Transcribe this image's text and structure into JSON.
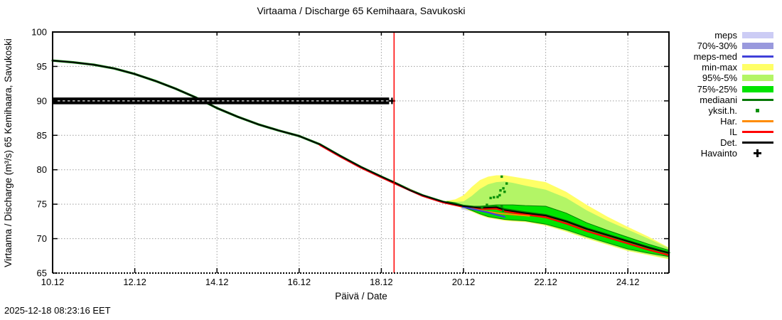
{
  "title": "Virtaama / Discharge  65 Kemihaara, Savukoski",
  "timestamp": "2025-12-18 08:23:16 EET",
  "legend": {
    "items": [
      {
        "label": "meps",
        "type": "band",
        "color": "#ccccf5"
      },
      {
        "label": "70%-30%",
        "type": "band",
        "color": "#9999dd"
      },
      {
        "label": "meps-med",
        "type": "line",
        "color": "#4040d9"
      },
      {
        "label": "min-max",
        "type": "band",
        "color": "#ffff66"
      },
      {
        "label": "95%-5%",
        "type": "band",
        "color": "#b3f566"
      },
      {
        "label": "75%-25%",
        "type": "band",
        "color": "#00e400"
      },
      {
        "label": "mediaani",
        "type": "line",
        "color": "#067806"
      },
      {
        "label": "yksit.h.",
        "type": "point",
        "color": "#089008"
      },
      {
        "label": "Har.",
        "type": "line",
        "color": "#ff8c00"
      },
      {
        "label": "IL",
        "type": "line",
        "color": "#ff0000"
      },
      {
        "label": "Det.",
        "type": "line",
        "color": "#000000"
      },
      {
        "label": "Havainto",
        "type": "plus",
        "color": "#000000"
      }
    ]
  },
  "chart_data": {
    "type": "line",
    "title": "Virtaama / Discharge  65 Kemihaara, Savukoski",
    "xlabel": "Päivä / Date",
    "ylabel": "Virtaama / Discharge (m³/s)  65 Kemihaara, Savukoski",
    "x_range_days": [
      10,
      25
    ],
    "x_ticks": [
      {
        "day": 10,
        "label": "10.12"
      },
      {
        "day": 12,
        "label": "12.12"
      },
      {
        "day": 14,
        "label": "14.12"
      },
      {
        "day": 16,
        "label": "16.12"
      },
      {
        "day": 18,
        "label": "18.12"
      },
      {
        "day": 20,
        "label": "20.12"
      },
      {
        "day": 22,
        "label": "22.12"
      },
      {
        "day": 24,
        "label": "24.12"
      }
    ],
    "y_range": [
      65,
      100
    ],
    "y_ticks": [
      65,
      70,
      75,
      80,
      85,
      90,
      95,
      100
    ],
    "grid": "dotted",
    "grid_color": "#9e9e9e",
    "now_line": {
      "day": 18.31,
      "color": "#ff0000"
    },
    "observation": {
      "label": "Havainto",
      "value": 90.0,
      "day_start": 10.0,
      "day_end": 18.19,
      "marker": "plus",
      "color": "#000000"
    },
    "bands": [
      {
        "name": "meps",
        "color": "#ccccf5",
        "points": [
          [
            19.95,
            74.25,
            74.95
          ],
          [
            20.3,
            73.8,
            74.5
          ],
          [
            20.6,
            73.4,
            74.15
          ],
          [
            21.0,
            72.75,
            73.55
          ]
        ]
      },
      {
        "name": "meps-70-30",
        "color": "#9999dd",
        "points": [
          [
            19.95,
            74.45,
            74.8
          ],
          [
            20.3,
            74.0,
            74.35
          ],
          [
            20.6,
            73.6,
            73.95
          ],
          [
            21.0,
            72.95,
            73.3
          ]
        ]
      },
      {
        "name": "min-max",
        "color": "#ffff66",
        "points": [
          [
            19.55,
            75.2,
            75.45
          ],
          [
            19.8,
            74.8,
            75.7
          ],
          [
            20.0,
            74.4,
            76.3
          ],
          [
            20.2,
            73.9,
            77.5
          ],
          [
            20.4,
            73.4,
            78.5
          ],
          [
            20.6,
            73.0,
            79.0
          ],
          [
            20.8,
            72.8,
            79.2
          ],
          [
            21.0,
            72.6,
            79.2
          ],
          [
            21.2,
            72.5,
            79.0
          ],
          [
            21.5,
            72.4,
            78.7
          ],
          [
            22.0,
            71.9,
            78.2
          ],
          [
            22.5,
            71.0,
            76.8
          ],
          [
            23.0,
            70.0,
            74.9
          ],
          [
            23.5,
            69.1,
            73.2
          ],
          [
            24.0,
            68.2,
            71.7
          ],
          [
            24.5,
            67.6,
            70.3
          ],
          [
            25.0,
            67.0,
            68.7
          ]
        ]
      },
      {
        "name": "95-5",
        "color": "#b3f566",
        "points": [
          [
            19.58,
            75.25,
            75.4
          ],
          [
            19.8,
            74.9,
            75.35
          ],
          [
            20.0,
            74.5,
            75.4
          ],
          [
            20.2,
            74.0,
            76.2
          ],
          [
            20.4,
            73.5,
            77.2
          ],
          [
            20.6,
            73.1,
            77.9
          ],
          [
            20.8,
            72.9,
            78.2
          ],
          [
            21.0,
            72.7,
            78.3
          ],
          [
            21.2,
            72.6,
            78.1
          ],
          [
            21.5,
            72.5,
            77.7
          ],
          [
            22.0,
            72.0,
            77.1
          ],
          [
            22.5,
            71.1,
            75.9
          ],
          [
            23.0,
            70.1,
            74.1
          ],
          [
            23.5,
            69.2,
            72.6
          ],
          [
            24.0,
            68.3,
            71.3
          ],
          [
            24.5,
            67.7,
            70.0
          ],
          [
            25.0,
            67.1,
            68.6
          ]
        ]
      },
      {
        "name": "75-25",
        "color": "#00e400",
        "edge_color": "#008000",
        "points": [
          [
            19.6,
            75.25,
            75.4
          ],
          [
            19.8,
            74.95,
            75.2
          ],
          [
            20.0,
            74.55,
            74.85
          ],
          [
            20.2,
            74.1,
            74.7
          ],
          [
            20.4,
            73.6,
            74.7
          ],
          [
            20.6,
            73.2,
            74.8
          ],
          [
            20.8,
            73.0,
            74.9
          ],
          [
            21.0,
            72.8,
            74.9
          ],
          [
            21.2,
            72.7,
            74.9
          ],
          [
            21.5,
            72.6,
            74.8
          ],
          [
            22.0,
            72.1,
            74.7
          ],
          [
            22.5,
            71.3,
            73.7
          ],
          [
            23.0,
            70.3,
            72.3
          ],
          [
            23.5,
            69.4,
            71.2
          ],
          [
            24.0,
            68.5,
            70.2
          ],
          [
            24.5,
            67.9,
            69.2
          ],
          [
            25.0,
            67.4,
            68.3
          ]
        ]
      }
    ],
    "series": [
      {
        "name": "mediaani",
        "color": "#067806",
        "width": 3.2,
        "points": [
          [
            10,
            95.85
          ],
          [
            10.5,
            95.6
          ],
          [
            11,
            95.25
          ],
          [
            11.5,
            94.7
          ],
          [
            12,
            93.9
          ],
          [
            12.5,
            92.9
          ],
          [
            13,
            91.75
          ],
          [
            13.5,
            90.45
          ],
          [
            14,
            88.95
          ],
          [
            14.5,
            87.7
          ],
          [
            15,
            86.6
          ],
          [
            15.5,
            85.7
          ],
          [
            16,
            84.9
          ],
          [
            16.5,
            83.7
          ],
          [
            17,
            82.0
          ],
          [
            17.5,
            80.4
          ],
          [
            18,
            79.0
          ],
          [
            18.31,
            78.15
          ],
          [
            18.7,
            77.05
          ],
          [
            19,
            76.3
          ],
          [
            19.5,
            75.35
          ],
          [
            20,
            74.75
          ],
          [
            20.4,
            74.5
          ],
          [
            20.8,
            74.6
          ],
          [
            21,
            74.25
          ],
          [
            21.5,
            73.8
          ],
          [
            22,
            73.4
          ],
          [
            22.5,
            72.55
          ],
          [
            23,
            71.45
          ],
          [
            23.5,
            70.55
          ],
          [
            24,
            69.65
          ],
          [
            24.5,
            68.75
          ],
          [
            25,
            67.95
          ]
        ]
      },
      {
        "name": "IL",
        "color": "#ff0000",
        "width": 2.4,
        "points": [
          [
            16.5,
            83.6
          ],
          [
            17,
            81.9
          ],
          [
            17.5,
            80.3
          ],
          [
            18,
            78.9
          ],
          [
            18.31,
            78.05
          ],
          [
            19,
            76.2
          ],
          [
            19.5,
            75.25
          ],
          [
            20,
            74.6
          ],
          [
            20.4,
            74.3
          ],
          [
            20.8,
            74.35
          ],
          [
            21,
            73.95
          ],
          [
            21.5,
            73.5
          ],
          [
            22,
            73.1
          ],
          [
            22.5,
            72.2
          ],
          [
            23,
            71.1
          ],
          [
            23.5,
            70.2
          ],
          [
            24,
            69.3
          ],
          [
            24.5,
            68.4
          ],
          [
            25,
            67.6
          ]
        ]
      },
      {
        "name": "Har.",
        "color": "#ff8c00",
        "width": 2,
        "points": [
          [
            20.05,
            74.6
          ],
          [
            20.3,
            74.25
          ],
          [
            20.6,
            73.9
          ],
          [
            20.9,
            73.65
          ],
          [
            21.2,
            73.5
          ],
          [
            21.6,
            73.3
          ]
        ]
      },
      {
        "name": "meps-med",
        "color": "#4040d9",
        "width": 2.2,
        "points": [
          [
            19.98,
            74.6
          ],
          [
            20.3,
            74.2
          ],
          [
            20.6,
            73.8
          ],
          [
            21.0,
            73.15
          ]
        ]
      },
      {
        "name": "Det.",
        "color": "#000000",
        "width": 1.8,
        "points": [
          [
            10,
            95.85
          ],
          [
            10.5,
            95.6
          ],
          [
            11,
            95.25
          ],
          [
            11.5,
            94.7
          ],
          [
            12,
            93.9
          ],
          [
            12.5,
            92.9
          ],
          [
            13,
            91.75
          ],
          [
            13.5,
            90.45
          ],
          [
            14,
            88.95
          ],
          [
            14.5,
            87.7
          ],
          [
            15,
            86.6
          ],
          [
            15.5,
            85.7
          ],
          [
            16,
            84.9
          ],
          [
            16.5,
            83.7
          ],
          [
            17,
            82.0
          ],
          [
            17.5,
            80.4
          ],
          [
            18,
            79.0
          ],
          [
            18.31,
            78.15
          ],
          [
            18.7,
            77.0
          ],
          [
            19,
            76.3
          ],
          [
            19.5,
            75.35
          ],
          [
            20,
            74.7
          ],
          [
            20.4,
            74.45
          ],
          [
            20.8,
            74.55
          ],
          [
            21,
            74.15
          ],
          [
            21.5,
            73.7
          ],
          [
            22,
            73.35
          ],
          [
            22.5,
            72.5
          ],
          [
            23,
            71.4
          ],
          [
            23.5,
            70.5
          ],
          [
            24,
            69.6
          ],
          [
            24.5,
            68.7
          ],
          [
            25,
            67.9
          ]
        ]
      }
    ],
    "points": {
      "name": "yksit.h.",
      "color": "#089008",
      "dots": [
        [
          20.45,
          74.5
        ],
        [
          20.57,
          74.9
        ],
        [
          20.66,
          75.9
        ],
        [
          20.74,
          76.0
        ],
        [
          20.83,
          76.05
        ],
        [
          20.88,
          76.3
        ],
        [
          20.9,
          77.0
        ],
        [
          20.93,
          79.0
        ],
        [
          21.0,
          76.8
        ],
        [
          21.05,
          78.0
        ],
        [
          20.97,
          77.3
        ],
        [
          20.93,
          74.7
        ],
        [
          20.96,
          74.05
        ]
      ]
    }
  }
}
